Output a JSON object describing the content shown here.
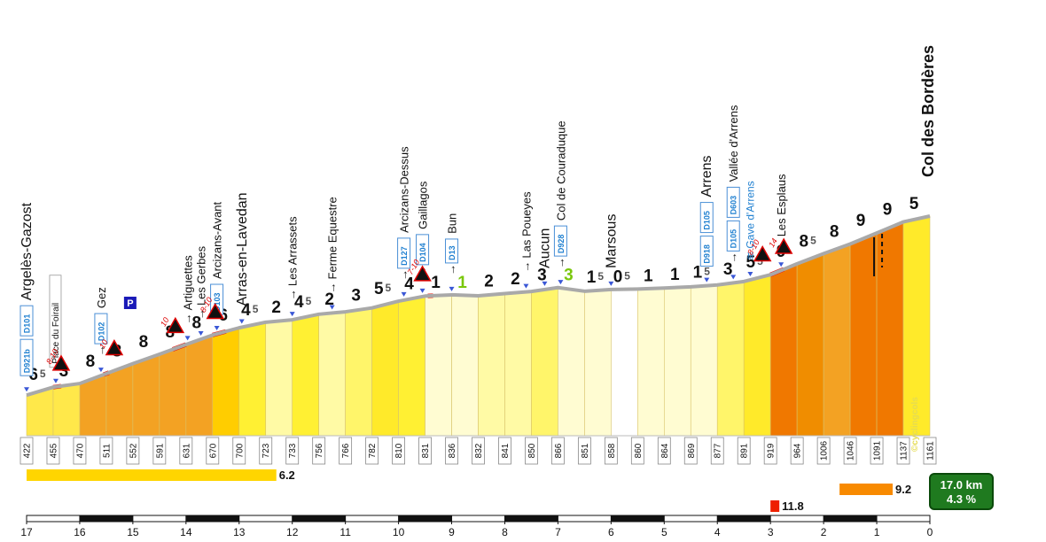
{
  "chart_data": {
    "type": "area",
    "title": "Col des Bordères",
    "x_axis": {
      "direction": "reversed",
      "range": [
        17,
        0
      ],
      "ticks": [
        17,
        16,
        15,
        14,
        13,
        12,
        11,
        10,
        9,
        8,
        7,
        6,
        5,
        4,
        3,
        2,
        1,
        0
      ]
    },
    "km_offsets": [
      17.0,
      16.5,
      16.0,
      15.5,
      15.0,
      14.5,
      14.0,
      13.5,
      13.0,
      12.5,
      12.0,
      11.5,
      11.0,
      10.5,
      10.0,
      9.5,
      9.0,
      8.5,
      8.0,
      7.5,
      7.0,
      6.5,
      6.0,
      5.5,
      5.0,
      4.5,
      4.0,
      3.5,
      3.0,
      2.5,
      2.0,
      1.5,
      1.0,
      0.5,
      0.0
    ],
    "altitudes_m": [
      422,
      455,
      470,
      511,
      552,
      591,
      631,
      670,
      700,
      723,
      733,
      756,
      766,
      782,
      810,
      831,
      836,
      832,
      841,
      850,
      866,
      851,
      858,
      860,
      864,
      869,
      877,
      891,
      919,
      964,
      1006,
      1046,
      1091,
      1137,
      1161
    ],
    "segment_gradients": [
      {
        "main": "6",
        "sup": "5",
        "color": "#ffe84a"
      },
      {
        "main": "3",
        "sup": "",
        "color": "#ffe84a"
      },
      {
        "main": "8",
        "sup": "",
        "color": "#f3a223"
      },
      {
        "main": "8",
        "sup": "",
        "color": "#f3a223"
      },
      {
        "main": "8",
        "sup": "",
        "color": "#f3a223"
      },
      {
        "main": "8",
        "sup": "",
        "color": "#f3a223"
      },
      {
        "main": "8",
        "sup": "",
        "color": "#f3a223"
      },
      {
        "main": "6",
        "sup": "",
        "color": "#ffcd00"
      },
      {
        "main": "4",
        "sup": "5",
        "color": "#fff033"
      },
      {
        "main": "2",
        "sup": "",
        "color": "#fffaa5"
      },
      {
        "main": "4",
        "sup": "5",
        "color": "#fff033"
      },
      {
        "main": "2",
        "sup": "",
        "color": "#fffaa5"
      },
      {
        "main": "3",
        "sup": "",
        "color": "#fff56a"
      },
      {
        "main": "5",
        "sup": "5",
        "color": "#ffea2a"
      },
      {
        "main": "4",
        "sup": "",
        "color": "#fff033"
      },
      {
        "main": "1",
        "sup": "",
        "color": "#fffcd2"
      },
      {
        "main": "1",
        "sup": "",
        "color": "#fffcd2",
        "descent": true
      },
      {
        "main": "2",
        "sup": "",
        "color": "#fffaa5"
      },
      {
        "main": "2",
        "sup": "",
        "color": "#fffaa5"
      },
      {
        "main": "3",
        "sup": "",
        "color": "#fff56a"
      },
      {
        "main": "3",
        "sup": "",
        "color": "#fffcd2",
        "descent": true
      },
      {
        "main": "1",
        "sup": "5",
        "color": "#fffcd2"
      },
      {
        "main": "0",
        "sup": "5",
        "color": "#ffffff"
      },
      {
        "main": "1",
        "sup": "",
        "color": "#fffcd2"
      },
      {
        "main": "1",
        "sup": "",
        "color": "#fffcd2"
      },
      {
        "main": "1",
        "sup": "5",
        "color": "#fffcd2"
      },
      {
        "main": "3",
        "sup": "",
        "color": "#fff56a"
      },
      {
        "main": "5",
        "sup": "5",
        "color": "#ffea2a"
      },
      {
        "main": "9",
        "sup": "",
        "color": "#f07800"
      },
      {
        "main": "8",
        "sup": "5",
        "color": "#f08d00"
      },
      {
        "main": "8",
        "sup": "",
        "color": "#f3a223"
      },
      {
        "main": "9",
        "sup": "",
        "color": "#f07800"
      },
      {
        "main": "9",
        "sup": "",
        "color": "#f07800"
      },
      {
        "main": "5",
        "sup": "",
        "color": "#ffea2a"
      }
    ],
    "places": [
      {
        "name": "Argelès-Gazost",
        "km": 17.0,
        "size": "big",
        "roads": [
          "D921b",
          "D101"
        ]
      },
      {
        "name": "Place du Foirail",
        "km": 16.45,
        "size": "boxed",
        "roads": []
      },
      {
        "name": "Gez",
        "km": 15.6,
        "size": "normal",
        "roads": [
          "D102"
        ],
        "arrow": true
      },
      {
        "name": "Artiguettes",
        "km": 13.97,
        "size": "normal",
        "roads": [],
        "arrow": true
      },
      {
        "name": "Les Gerbes",
        "km": 13.72,
        "size": "normal",
        "roads": [],
        "arrow": true
      },
      {
        "name": "Arcizans-Avant",
        "km": 13.42,
        "size": "normal",
        "roads": [
          "D103"
        ]
      },
      {
        "name": "Arras-en-Lavedan",
        "km": 12.95,
        "size": "big",
        "roads": []
      },
      {
        "name": "Les Arrassets",
        "km": 12.0,
        "size": "normal",
        "roads": [],
        "arrow": true
      },
      {
        "name": "Ferme Equestre",
        "km": 11.25,
        "size": "normal",
        "roads": [],
        "arrow": true
      },
      {
        "name": "Arcizans-Dessus",
        "km": 9.9,
        "size": "normal",
        "roads": [
          "D127"
        ],
        "arrow": true
      },
      {
        "name": "Gaillagos",
        "km": 9.55,
        "size": "normal",
        "roads": [
          "D104"
        ],
        "arrow": true
      },
      {
        "name": "Bun",
        "km": 9.0,
        "size": "normal",
        "roads": [
          "D13"
        ],
        "arrow": true
      },
      {
        "name": "Las Poueyes",
        "km": 7.6,
        "size": "normal",
        "roads": [],
        "arrow": true
      },
      {
        "name": "Aucun",
        "km": 7.25,
        "size": "big",
        "roads": []
      },
      {
        "name": "Col de Couraduque",
        "km": 6.95,
        "size": "normal",
        "roads": [
          "D928"
        ],
        "arrow": true
      },
      {
        "name": "Marsous",
        "km": 6.0,
        "size": "big",
        "roads": []
      },
      {
        "name": "Arrens",
        "km": 4.2,
        "size": "big",
        "roads": [
          "D918",
          "D105"
        ]
      },
      {
        "name": "Vallée d'Arrens",
        "km": 3.7,
        "size": "normal",
        "roads": [
          "D105",
          "D603"
        ],
        "arrow": true
      },
      {
        "name": "Gave d'Arrens",
        "km": 3.38,
        "size": "river",
        "roads": []
      },
      {
        "name": "Les Esplaus",
        "km": 2.8,
        "size": "normal",
        "roads": [],
        "arrow": true
      }
    ],
    "steep_warnings": [
      {
        "label": "8-10",
        "km": 16.35
      },
      {
        "label": "10",
        "km": 15.35
      },
      {
        "label": "10",
        "km": 14.2
      },
      {
        "label": "8-10",
        "km": 13.45
      },
      {
        "label": "7-10",
        "km": 9.55
      },
      {
        "label": "8-10",
        "km": 3.15
      },
      {
        "label": "14",
        "km": 2.75
      }
    ],
    "steep_marks": [
      [
        16.5,
        16.35
      ],
      [
        15.55,
        15.45
      ],
      [
        14.25,
        14.0
      ],
      [
        13.5,
        13.25
      ],
      [
        9.45,
        9.35
      ],
      [
        3.0,
        2.75
      ]
    ],
    "parking": {
      "km": 15.05,
      "label": "P"
    },
    "section_bars": [
      {
        "value": "6.2",
        "color": "#ffd500",
        "row": 1,
        "from_km": 17.0,
        "to_km": 12.3
      },
      {
        "value": "9.2",
        "color": "#f88a00",
        "row": 2,
        "from_km": 1.7,
        "to_km": 0.7
      },
      {
        "value": "11.8",
        "color": "#ee2000",
        "row": 3,
        "from_km": 3.0,
        "to_km": 2.85
      }
    ],
    "summary": {
      "distance": "17.0 km",
      "average": "4.3 %"
    },
    "watermark": "©cyclingcols"
  }
}
